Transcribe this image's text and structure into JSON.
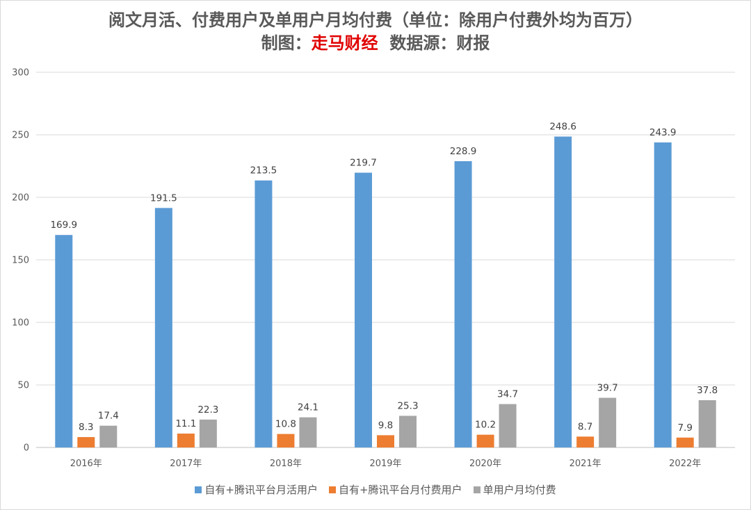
{
  "title_line1": "阅文月活、付费用户及单用户月均付费（单位：除用户付费外均为百万）",
  "title_line2_prefix": "制图：",
  "title_line2_brand": "走马财经",
  "title_line2_source": "数据源：财报",
  "chart_data": {
    "type": "bar",
    "categories": [
      "2016年",
      "2017年",
      "2018年",
      "2019年",
      "2020年",
      "2021年",
      "2022年"
    ],
    "series": [
      {
        "name": "自有+腾讯平台月活用户",
        "color": "#5b9bd5",
        "values": [
          169.9,
          191.5,
          213.5,
          219.7,
          228.9,
          248.6,
          243.9
        ],
        "labels": [
          "169.9",
          "191.5",
          "213.5",
          "219.7",
          "228.9",
          "248.6",
          "243.9"
        ]
      },
      {
        "name": "自有+腾讯平台月付费用户",
        "color": "#ed7d31",
        "values": [
          8.3,
          11.1,
          10.8,
          9.8,
          10.2,
          8.7,
          7.9
        ],
        "labels": [
          "8.3",
          "11.1",
          "10.8",
          "9.8",
          "10.2",
          "8.7",
          "7.9"
        ]
      },
      {
        "name": "单用户月均付费",
        "color": "#a5a5a5",
        "values": [
          17.4,
          22.3,
          24.1,
          25.3,
          34.7,
          39.7,
          37.8
        ],
        "labels": [
          "17.4",
          "22.3",
          "24.1",
          "25.3",
          "34.7",
          "39.7",
          "37.8"
        ]
      }
    ],
    "ylim": [
      0,
      300
    ],
    "yticks": [
      "0",
      "50",
      "100",
      "150",
      "200",
      "250",
      "300"
    ],
    "grid": true,
    "legend_position": "bottom"
  }
}
